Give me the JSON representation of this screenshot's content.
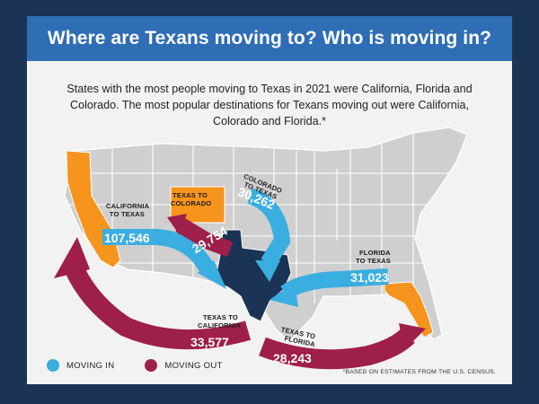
{
  "title": "Where are Texans moving to? Who is moving in?",
  "intro": "States with the most people moving to Texas in 2021 were California, Florida and Colorado. The most popular destinations for Texans moving out were California, Colorado and Florida.*",
  "flows": {
    "california_to_texas": {
      "label_1": "CALIFORNIA",
      "label_2": "TO TEXAS",
      "value": "107,546"
    },
    "texas_to_colorado": {
      "label_1": "TEXAS TO",
      "label_2": "COLORADO",
      "value": "29,754"
    },
    "colorado_to_texas": {
      "label_1": "COLORADO",
      "label_2": "TO TEXAS",
      "value": "30,262"
    },
    "florida_to_texas": {
      "label_1": "FLORIDA",
      "label_2": "TO TEXAS",
      "value": "31,023"
    },
    "texas_to_california": {
      "label_1": "TEXAS TO",
      "label_2": "CALIFORNIA",
      "value": "33,577"
    },
    "texas_to_florida": {
      "label_1": "TEXAS TO",
      "label_2": "FLORIDA",
      "value": "28,243"
    }
  },
  "legend": {
    "in_label": "MOVING IN",
    "out_label": "MOVING OUT"
  },
  "footnote": "*BASED ON ESTIMATES FROM THE U.S. CENSUS.",
  "colors": {
    "background": "#1b3354",
    "title_bar": "#2f6db5",
    "moving_in": "#3aaee0",
    "moving_out": "#9e1f4a",
    "highlight_state": "#f7941d",
    "texas": "#1b3354",
    "other_states": "#cfcfcf"
  },
  "icons": [
    "us-map",
    "arrow-in",
    "arrow-out"
  ]
}
